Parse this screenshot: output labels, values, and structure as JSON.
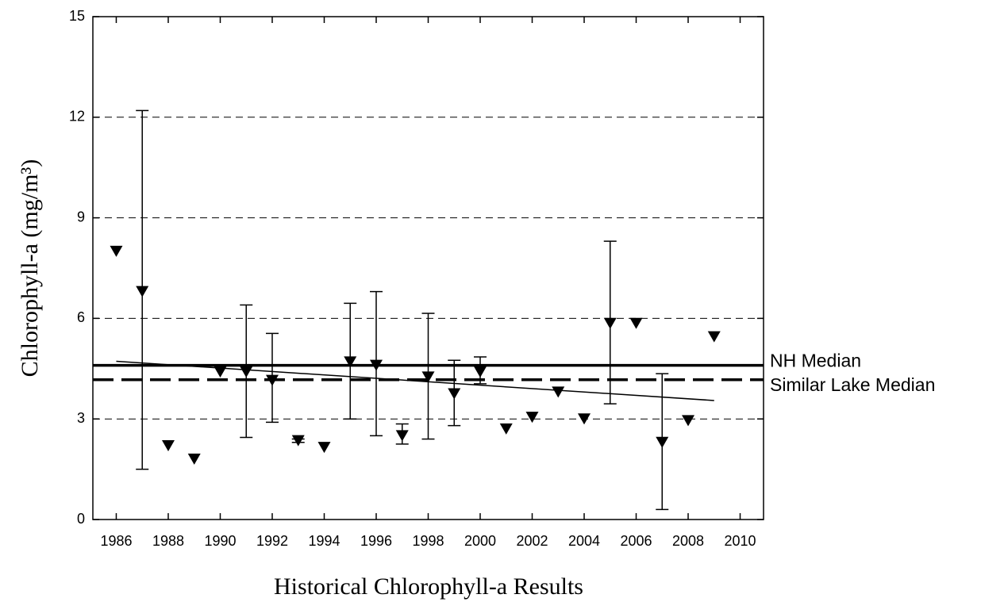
{
  "chart_data": {
    "type": "scatter",
    "xlabel": "Historical Chlorophyll-a Results",
    "ylabel": "Chlorophyll-a (mg/m³)",
    "xlim": [
      1985.1,
      2010.9
    ],
    "ylim": [
      0,
      15
    ],
    "xticks": [
      1986,
      1988,
      1990,
      1992,
      1994,
      1996,
      1998,
      2000,
      2002,
      2004,
      2006,
      2008,
      2010
    ],
    "yticks": [
      0,
      3,
      6,
      9,
      12,
      15
    ],
    "grid": true,
    "series": [
      {
        "color": "#000000",
        "x": [
          1986,
          1987,
          1988,
          1989,
          1990,
          1991,
          1992,
          1993,
          1994,
          1995,
          1996,
          1997,
          1998,
          1999,
          2000,
          2001,
          2002,
          2003,
          2004,
          2005,
          2006,
          2007,
          2008,
          2009
        ],
        "values": [
          8.0,
          6.8,
          2.2,
          1.8,
          4.4,
          4.4,
          4.15,
          2.35,
          2.15,
          4.7,
          4.6,
          2.5,
          4.25,
          3.75,
          4.4,
          2.7,
          3.05,
          3.8,
          3.0,
          5.85,
          5.85,
          2.3,
          2.95,
          5.45
        ],
        "y_low": [
          null,
          1.5,
          null,
          null,
          null,
          2.45,
          2.9,
          2.3,
          null,
          3.0,
          2.5,
          2.25,
          2.4,
          2.8,
          4.05,
          null,
          null,
          null,
          null,
          3.45,
          null,
          0.3,
          null,
          null
        ],
        "y_high": [
          null,
          12.2,
          null,
          null,
          null,
          6.4,
          5.55,
          2.4,
          null,
          6.45,
          6.8,
          2.85,
          6.15,
          4.75,
          4.85,
          null,
          null,
          null,
          null,
          8.3,
          null,
          4.35,
          null,
          null
        ]
      }
    ],
    "trend": {
      "x": [
        1986,
        2009
      ],
      "y": [
        4.72,
        3.55
      ]
    },
    "reference_lines": [
      {
        "name": "NH Median",
        "value": 4.6,
        "style": "solid"
      },
      {
        "name": "Similar Lake Median",
        "value": 4.17,
        "style": "dashed"
      }
    ]
  }
}
